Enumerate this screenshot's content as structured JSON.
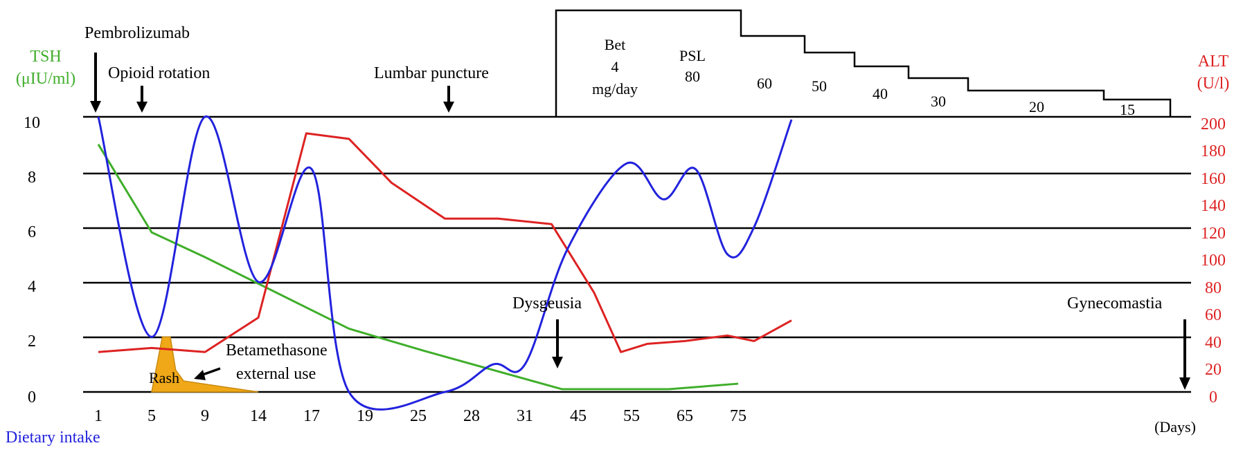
{
  "colors": {
    "tsh": "#3fae2a",
    "alt": "#dd2222",
    "dietary": "#2222dd",
    "rash_fill": "#f0a818",
    "axis": "#000000"
  },
  "labels": {
    "tsh_title_1": "TSH",
    "tsh_title_2": "(μIU/ml)",
    "alt_title_1": "ALT",
    "alt_title_2": "(U/l)",
    "dietary_title": "Dietary intake",
    "days_unit": "(Days)",
    "pembrolizumab": "Pembrolizumab",
    "opioid": "Opioid rotation",
    "lumbar": "Lumbar puncture",
    "dysgeusia": "Dysgeusia",
    "gynecomastia": "Gynecomastia",
    "rash": "Rash",
    "betamethasone_1": "Betamethasone",
    "betamethasone_2": "external use",
    "steroid_bet_1": "Bet",
    "steroid_bet_2": "4",
    "steroid_bet_3": "mg/day",
    "steroid_psl_1": "PSL",
    "steroid_psl_2": "80"
  },
  "chart_data": {
    "type": "line",
    "x_categories": [
      "1",
      "5",
      "9",
      "14",
      "17",
      "19",
      "25",
      "28",
      "31",
      "45",
      "55",
      "65",
      "75"
    ],
    "x_unit": "(Days)",
    "left_axis": {
      "title": "TSH (μIU/ml)",
      "ticks": [
        0,
        2,
        4,
        6,
        8,
        10
      ],
      "range": [
        0,
        10
      ]
    },
    "right_axis": {
      "title": "ALT (U/l)",
      "ticks": [
        0,
        20,
        40,
        60,
        80,
        100,
        120,
        140,
        160,
        180,
        200
      ],
      "range": [
        0,
        200
      ]
    },
    "grid": "horizontal",
    "series": [
      {
        "name": "TSH",
        "axis": "left",
        "color": "#3fae2a",
        "points": [
          [
            0,
            9.0
          ],
          [
            1,
            5.8
          ],
          [
            2,
            4.9
          ],
          [
            4.7,
            2.3
          ],
          [
            6.1,
            1.5
          ],
          [
            8.7,
            0.1
          ],
          [
            10.7,
            0.1
          ],
          [
            12,
            0.3
          ]
        ]
      },
      {
        "name": "ALT",
        "axis": "left",
        "color": "#dd2222",
        "points": [
          [
            0,
            1.45
          ],
          [
            1,
            1.6
          ],
          [
            2,
            1.45
          ],
          [
            3,
            2.7
          ],
          [
            3.9,
            9.4
          ],
          [
            4.7,
            9.2
          ],
          [
            5.5,
            7.6
          ],
          [
            6.5,
            6.3
          ],
          [
            7.5,
            6.3
          ],
          [
            8.5,
            6.1
          ],
          [
            9.3,
            3.6
          ],
          [
            9.8,
            1.45
          ],
          [
            10.3,
            1.75
          ],
          [
            11,
            1.85
          ],
          [
            11.8,
            2.05
          ],
          [
            12.3,
            1.85
          ],
          [
            13,
            2.6
          ]
        ]
      },
      {
        "name": "Dietary intake",
        "axis": "left",
        "color": "#2222dd",
        "points": [
          [
            0,
            10
          ],
          [
            1,
            2.0
          ],
          [
            2,
            10
          ],
          [
            3,
            4.0
          ],
          [
            4,
            8.1
          ],
          [
            4.7,
            0
          ],
          [
            6.5,
            0
          ],
          [
            7.4,
            1.0
          ],
          [
            8,
            1.0
          ],
          [
            8.8,
            5.2
          ],
          [
            9.9,
            8.3
          ],
          [
            10.6,
            7.0
          ],
          [
            11.2,
            8.1
          ],
          [
            11.8,
            5.0
          ],
          [
            12.3,
            6.0
          ],
          [
            13,
            9.9
          ]
        ]
      }
    ],
    "rash": {
      "label": "Rash",
      "points": [
        [
          1,
          0
        ],
        [
          1.2,
          2.0
        ],
        [
          1.35,
          2.0
        ],
        [
          1.45,
          0.8
        ],
        [
          1.6,
          0.4
        ],
        [
          3,
          0
        ]
      ]
    },
    "events": [
      {
        "label": "Pembrolizumab",
        "x": 0
      },
      {
        "label": "Opioid rotation",
        "x": 1
      },
      {
        "label": "Lumbar puncture",
        "x": 6.6
      },
      {
        "label": "Dysgeusia",
        "x": 7.3
      },
      {
        "label": "Gynecomastia",
        "x": 13.2
      }
    ],
    "annotations": [
      {
        "label": "Betamethasone external use",
        "target": "Rash"
      }
    ],
    "steroid_taper": {
      "labels": [
        "Bet 4 mg/day",
        "PSL 80",
        "60",
        "50",
        "40",
        "30",
        "20",
        "15"
      ],
      "steps": [
        80,
        60,
        50,
        40,
        30,
        20,
        15
      ]
    }
  }
}
